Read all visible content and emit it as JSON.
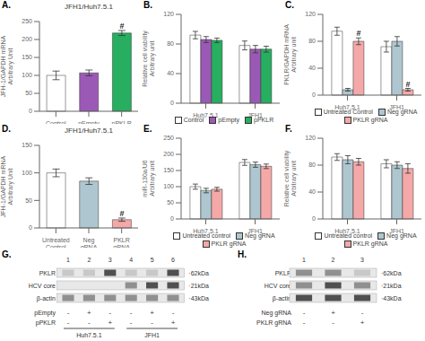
{
  "chart_data": [
    {
      "type": "bar",
      "title": "JFH1/Huh7.5.1",
      "ylabel": "JFH-1/GAPDH mRNA\nArbitrary Unit",
      "categories": [
        "Control",
        "pEmpty",
        "pPKLR"
      ],
      "values": [
        100,
        107,
        218
      ],
      "errors": [
        12,
        8,
        7
      ],
      "colors": [
        "white",
        "#9b59b6",
        "#27ae60"
      ],
      "ylim": [
        0,
        250
      ],
      "yticks": [
        0,
        50,
        100,
        150,
        200,
        250
      ],
      "grid": false,
      "annotations": [
        {
          "text": "A."
        },
        {
          "text": "#",
          "category": "pPKLR"
        }
      ]
    },
    {
      "type": "bar",
      "ylabel": "Relative cell viability\nArbitrary unit",
      "categories": [
        "Huh7.5.1",
        "JFH1"
      ],
      "series": [
        {
          "name": "Control",
          "color": "white",
          "values": [
            92,
            78
          ],
          "errors": [
            5,
            6
          ]
        },
        {
          "name": "pEmpty",
          "color": "#9b59b6",
          "values": [
            86,
            73
          ],
          "errors": [
            4,
            5
          ]
        },
        {
          "name": "pPKLR",
          "color": "#27ae60",
          "values": [
            85,
            73
          ],
          "errors": [
            3,
            4
          ]
        }
      ],
      "ylim": [
        0,
        120
      ],
      "yticks": [
        0,
        40,
        80,
        120
      ],
      "grid": false,
      "legend": "bottom",
      "annotations": [
        {
          "text": "B."
        }
      ]
    },
    {
      "type": "bar",
      "ylabel": "PKLR/GAPDH mRNA\nArbitrary unit",
      "categories": [
        "Huh7.5.1",
        "JFH1"
      ],
      "series": [
        {
          "name": "Untreated Control",
          "color": "white",
          "values": [
            95,
            72
          ],
          "errors": [
            6,
            8
          ]
        },
        {
          "name": "Neg gRNA",
          "color": "#aec6cf",
          "values": [
            8,
            80
          ],
          "errors": [
            2,
            7
          ]
        },
        {
          "name": "PKLR gRNA",
          "color": "#f4a9a8",
          "values": [
            80,
            8
          ],
          "errors": [
            5,
            2
          ]
        }
      ],
      "ylim": [
        0,
        120
      ],
      "yticks": [
        0,
        40,
        80,
        120
      ],
      "grid": false,
      "legend": "bottom",
      "annotations": [
        {
          "text": "C."
        },
        {
          "text": "#",
          "category": "Huh7.5.1",
          "series": "PKLR gRNA"
        },
        {
          "text": "#",
          "category": "JFH1",
          "series": "PKLR gRNA"
        }
      ]
    },
    {
      "type": "bar",
      "title": "JFH1/Huh7.5.1",
      "ylabel": "JFH-1/GAPDH mRNA\nArbitrary Unit",
      "categories": [
        "Untreated\nControl",
        "Neg\ngRNA",
        "PKLR\ngRNA"
      ],
      "values": [
        100,
        85,
        15
      ],
      "errors": [
        7,
        6,
        3
      ],
      "colors": [
        "white",
        "#aec6cf",
        "#f4a9a8"
      ],
      "ylim": [
        0,
        150
      ],
      "yticks": [
        0,
        50,
        100,
        150
      ],
      "grid": false,
      "annotations": [
        {
          "text": "D."
        },
        {
          "text": "#",
          "category": "PKLR\ngRNA"
        }
      ]
    },
    {
      "type": "bar",
      "ylabel": "miR-130a/U6\nArbitrary unit",
      "categories": [
        "Huh7.5.1",
        "JFH1"
      ],
      "series": [
        {
          "name": "Untreated control",
          "color": "white",
          "values": [
            100,
            175
          ],
          "errors": [
            8,
            9
          ]
        },
        {
          "name": "Neg gRNA",
          "color": "#aec6cf",
          "values": [
            88,
            168
          ],
          "errors": [
            7,
            8
          ]
        },
        {
          "name": "PKLR gRNA",
          "color": "#f4a9a8",
          "values": [
            92,
            163
          ],
          "errors": [
            6,
            7
          ]
        }
      ],
      "ylim": [
        0,
        250
      ],
      "yticks": [
        0,
        50,
        100,
        150,
        200,
        250
      ],
      "grid": false,
      "legend": "bottom",
      "annotations": [
        {
          "text": "E."
        }
      ]
    },
    {
      "type": "bar",
      "ylabel": "Relative cell viability\nArbitrary unit",
      "categories": [
        "Huh7.5.1",
        "JFH1"
      ],
      "series": [
        {
          "name": "Untreated control",
          "color": "white",
          "values": [
            92,
            82
          ],
          "errors": [
            5,
            6
          ]
        },
        {
          "name": "Neg gRNA",
          "color": "#aec6cf",
          "values": [
            88,
            80
          ],
          "errors": [
            6,
            5
          ]
        },
        {
          "name": "PKLR gRNA",
          "color": "#f4a9a8",
          "values": [
            85,
            75
          ],
          "errors": [
            5,
            7
          ]
        }
      ],
      "ylim": [
        0,
        120
      ],
      "yticks": [
        0,
        40,
        80,
        120
      ],
      "grid": false,
      "legend": "bottom",
      "annotations": [
        {
          "text": "F."
        }
      ]
    },
    {
      "type": "blot",
      "annotations": [
        {
          "text": "G."
        }
      ],
      "categories": [
        "1",
        "2",
        "3",
        "4",
        "5",
        "6"
      ],
      "rows": [
        {
          "name": "PKLR",
          "label": " ·62kDa",
          "values": [
            1,
            1,
            3,
            1,
            1,
            3
          ]
        },
        {
          "name": "HCV core",
          "label": " ·21kDa",
          "values": [
            0,
            0,
            0,
            2,
            3,
            3
          ]
        },
        {
          "name": "β-actin",
          "label": " ·43kDa",
          "values": [
            2,
            2,
            2,
            2,
            2,
            2
          ]
        }
      ],
      "sign_rows": [
        {
          "name": "pEmpty",
          "values": [
            "-",
            "+",
            "-",
            "-",
            "+",
            "-"
          ]
        },
        {
          "name": "pPKLR",
          "values": [
            "-",
            "-",
            "+",
            "-",
            "-",
            "+"
          ]
        }
      ],
      "groups": [
        {
          "name": "Huh7.5.1",
          "lanes": [
            "1",
            "2",
            "3"
          ]
        },
        {
          "name": "JFH1",
          "lanes": [
            "4",
            "5",
            "6"
          ]
        }
      ]
    },
    {
      "type": "blot",
      "annotations": [
        {
          "text": "H."
        }
      ],
      "categories": [
        "1",
        "2",
        "3"
      ],
      "rows": [
        {
          "name": "PKLR",
          "label": " ·62kDa",
          "values": [
            2,
            2,
            1
          ]
        },
        {
          "name": "HCV core",
          "label": " ·21kDa",
          "values": [
            2,
            3,
            2
          ]
        },
        {
          "name": "β-actin",
          "label": " ·43kDa",
          "values": [
            3,
            3,
            3
          ]
        }
      ],
      "sign_rows": [
        {
          "name": "Neg gRNA",
          "values": [
            "-",
            "+",
            "-"
          ]
        },
        {
          "name": "PKLR gRNA",
          "values": [
            "-",
            "-",
            "+"
          ]
        }
      ]
    }
  ]
}
